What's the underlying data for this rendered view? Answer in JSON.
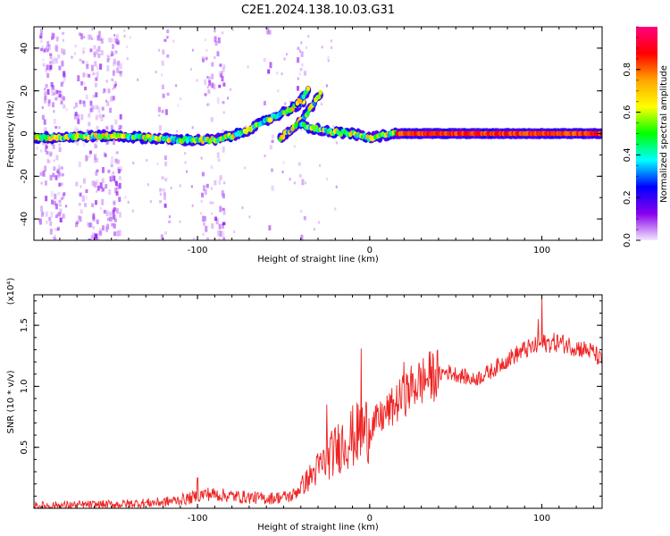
{
  "title": "C2E1.2024.138.10.03.G31",
  "chart_data": [
    {
      "type": "heatmap",
      "xlabel": "Height of straight line (km)",
      "ylabel": "Frequency (Hz)",
      "xlim": [
        -195,
        135
      ],
      "ylim": [
        -50,
        50
      ],
      "xticks": [
        -100,
        0,
        100
      ],
      "xtick_labels": [
        "-100",
        "0",
        "100"
      ],
      "yticks": [
        -40,
        -20,
        0,
        20,
        40
      ],
      "ytick_labels": [
        "-40",
        "-20",
        "0",
        "20",
        "40"
      ],
      "colorbar": {
        "label": "Normalized spectral amplitude",
        "range": [
          0.0,
          1.0
        ],
        "ticks": [
          0.0,
          0.2,
          0.4,
          0.6,
          0.8
        ],
        "tick_labels": [
          "0.0",
          "0.2",
          "0.4",
          "0.6",
          "0.8"
        ],
        "colors": [
          "#f4e8fc",
          "#8800ee",
          "#0000ff",
          "#00ffff",
          "#00ff00",
          "#ffff00",
          "#ffa500",
          "#ff0000",
          "#ff007f"
        ]
      },
      "ridges": [
        {
          "name": "main-trace",
          "points": [
            [
              -195,
              -2
            ],
            [
              -150,
              -1
            ],
            [
              -110,
              -3
            ],
            [
              -90,
              -3
            ],
            [
              -75,
              0
            ],
            [
              -60,
              6
            ],
            [
              -45,
              12
            ],
            [
              -38,
              15
            ]
          ]
        },
        {
          "name": "branch-trace",
          "points": [
            [
              -52,
              -2
            ],
            [
              -44,
              3
            ],
            [
              -38,
              8
            ],
            [
              -33,
              13
            ],
            [
              -28,
              20
            ]
          ]
        },
        {
          "name": "upper-trace",
          "points": [
            [
              -42,
              14
            ],
            [
              -35,
              21
            ]
          ]
        },
        {
          "name": "tail-trace",
          "points": [
            [
              -40,
              4
            ],
            [
              -25,
              1
            ],
            [
              -10,
              0
            ],
            [
              0,
              -2
            ],
            [
              15,
              0
            ],
            [
              50,
              0
            ],
            [
              100,
              0
            ],
            [
              135,
              0
            ]
          ]
        }
      ]
    },
    {
      "type": "line",
      "xlabel": "Height of straight line (km)",
      "ylabel": "SNR (10 * v/v)",
      "multiplier": "(x10⁴)",
      "xlim": [
        -195,
        135
      ],
      "ylim": [
        0,
        1.75
      ],
      "xticks": [
        -100,
        0,
        100
      ],
      "xtick_labels": [
        "-100",
        "0",
        "100"
      ],
      "yticks": [
        0.5,
        1.0,
        1.5
      ],
      "ytick_labels": [
        "0.5",
        "1.0",
        "1.5"
      ],
      "color": "#ee2222",
      "envelope": [
        {
          "x": -195,
          "y": 0.02
        },
        {
          "x": -150,
          "y": 0.03
        },
        {
          "x": -120,
          "y": 0.05
        },
        {
          "x": -105,
          "y": 0.08
        },
        {
          "x": -95,
          "y": 0.12
        },
        {
          "x": -80,
          "y": 0.1
        },
        {
          "x": -60,
          "y": 0.08
        },
        {
          "x": -45,
          "y": 0.1
        },
        {
          "x": -35,
          "y": 0.25
        },
        {
          "x": -25,
          "y": 0.4
        },
        {
          "x": -15,
          "y": 0.55
        },
        {
          "x": -5,
          "y": 0.62
        },
        {
          "x": 5,
          "y": 0.72
        },
        {
          "x": 15,
          "y": 0.85
        },
        {
          "x": 25,
          "y": 1.0
        },
        {
          "x": 35,
          "y": 1.08
        },
        {
          "x": 45,
          "y": 1.12
        },
        {
          "x": 55,
          "y": 1.08
        },
        {
          "x": 60,
          "y": 1.05
        },
        {
          "x": 70,
          "y": 1.12
        },
        {
          "x": 80,
          "y": 1.22
        },
        {
          "x": 90,
          "y": 1.3
        },
        {
          "x": 95,
          "y": 1.32
        },
        {
          "x": 100,
          "y": 1.35
        },
        {
          "x": 110,
          "y": 1.36
        },
        {
          "x": 120,
          "y": 1.32
        },
        {
          "x": 130,
          "y": 1.28
        },
        {
          "x": 135,
          "y": 1.2
        }
      ],
      "spikes": [
        {
          "x": -100,
          "y": 0.25
        },
        {
          "x": -25,
          "y": 0.85
        },
        {
          "x": -5,
          "y": 1.31
        },
        {
          "x": 20,
          "y": 1.2
        },
        {
          "x": 98,
          "y": 1.55
        },
        {
          "x": 100,
          "y": 1.72
        }
      ]
    }
  ]
}
